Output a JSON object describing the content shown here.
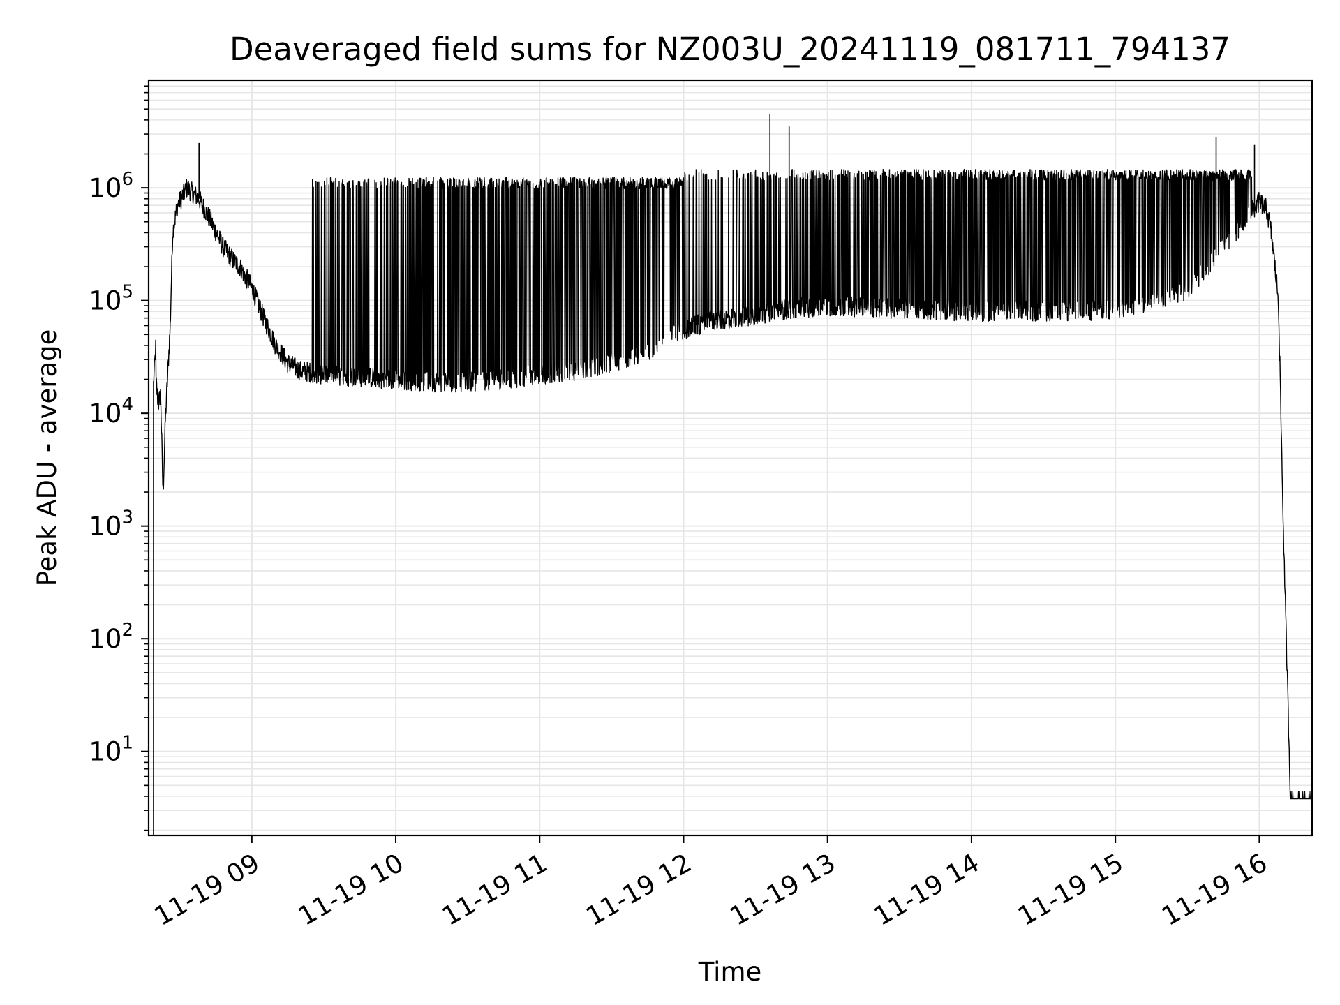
{
  "chart_data": {
    "type": "line",
    "title": "Deaveraged field sums for NZ003U_20241119_081711_794137",
    "xlabel": "Time",
    "ylabel": "Peak ADU - average",
    "yscale": "log",
    "ylim": [
      1.8,
      9000000
    ],
    "xlim": [
      "2024-11-19 08:17",
      "2024-11-19 16:22"
    ],
    "x_tick_labels": [
      "11-19 09",
      "11-19 10",
      "11-19 11",
      "11-19 12",
      "11-19 13",
      "11-19 14",
      "11-19 15",
      "11-19 16"
    ],
    "x_tick_times": [
      "2024-11-19 09:00",
      "2024-11-19 10:00",
      "2024-11-19 11:00",
      "2024-11-19 12:00",
      "2024-11-19 13:00",
      "2024-11-19 14:00",
      "2024-11-19 15:00",
      "2024-11-19 16:00"
    ],
    "y_tick_labels": [
      {
        "base": "10",
        "exp": "1"
      },
      {
        "base": "10",
        "exp": "2"
      },
      {
        "base": "10",
        "exp": "3"
      },
      {
        "base": "10",
        "exp": "4"
      },
      {
        "base": "10",
        "exp": "5"
      },
      {
        "base": "10",
        "exp": "6"
      }
    ],
    "y_tick_values": [
      10,
      100,
      1000,
      10000,
      100000,
      1000000
    ],
    "grid": "major and minor",
    "line_color": "#000000",
    "grid_color": "#e6e6e6",
    "series": [
      {
        "x": [
          "2024-11-19 08:19",
          "2024-11-19 08:20",
          "2024-11-19 08:20",
          "2024-11-19 08:21",
          "2024-11-19 08:22",
          "2024-11-19 08:23",
          "2024-11-19 08:24",
          "2024-11-19 08:26",
          "2024-11-19 08:27",
          "2024-11-19 08:29",
          "2024-11-19 08:33",
          "2024-11-19 08:38",
          "2024-11-19 08:43",
          "2024-11-19 08:48",
          "2024-11-19 08:52",
          "2024-11-19 08:55",
          "2024-11-19 09:00",
          "2024-11-19 09:05",
          "2024-11-19 09:10",
          "2024-11-19 09:15",
          "2024-11-19 09:20",
          "2024-11-19 09:30",
          "2024-11-19 09:45",
          "2024-11-19 10:00",
          "2024-11-19 10:15",
          "2024-11-19 10:30",
          "2024-11-19 10:45",
          "2024-11-19 11:00",
          "2024-11-19 11:15",
          "2024-11-19 11:30",
          "2024-11-19 11:45",
          "2024-11-19 11:55",
          "2024-11-19 12:10",
          "2024-11-19 12:30",
          "2024-11-19 12:45",
          "2024-11-19 13:00",
          "2024-11-19 13:30",
          "2024-11-19 14:00",
          "2024-11-19 14:30",
          "2024-11-19 15:00",
          "2024-11-19 15:30",
          "2024-11-19 15:45",
          "2024-11-19 15:55",
          "2024-11-19 16:00",
          "2024-11-19 16:03",
          "2024-11-19 16:05",
          "2024-11-19 16:08",
          "2024-11-19 16:10",
          "2024-11-19 16:13",
          "2024-11-19 16:14",
          "2024-11-19 16:16",
          "2024-11-19 16:20",
          "2024-11-19 16:22"
        ],
        "y": [
          18000,
          40000,
          20000,
          12000,
          15000,
          1900,
          9000,
          60000,
          400000,
          700000,
          1000000,
          800000,
          500000,
          300000,
          230000,
          200000,
          130000,
          70000,
          40000,
          28000,
          24000,
          22000,
          21000,
          20000,
          19000,
          19000,
          20000,
          22000,
          24000,
          28000,
          35000,
          50000,
          65000,
          75000,
          85000,
          90000,
          85000,
          80000,
          80000,
          82000,
          120000,
          300000,
          550000,
          750000,
          650000,
          400000,
          100000,
          1000,
          3.8,
          3.8,
          3.8,
          3.8,
          3.8
        ],
        "upper_envelope": [
          {
            "from": "2024-11-19 09:25",
            "to": "2024-11-19 12:00",
            "y": 1100000
          },
          {
            "from": "2024-11-19 12:00",
            "to": "2024-11-19 15:57",
            "y": 1300000
          }
        ],
        "peaks": [
          {
            "x": "2024-11-19 08:38",
            "y": 2500000
          },
          {
            "x": "2024-11-19 12:36",
            "y": 4500000
          },
          {
            "x": "2024-11-19 12:44",
            "y": 3500000
          },
          {
            "x": "2024-11-19 15:42",
            "y": 2800000
          },
          {
            "x": "2024-11-19 15:58",
            "y": 2400000
          }
        ]
      }
    ]
  }
}
